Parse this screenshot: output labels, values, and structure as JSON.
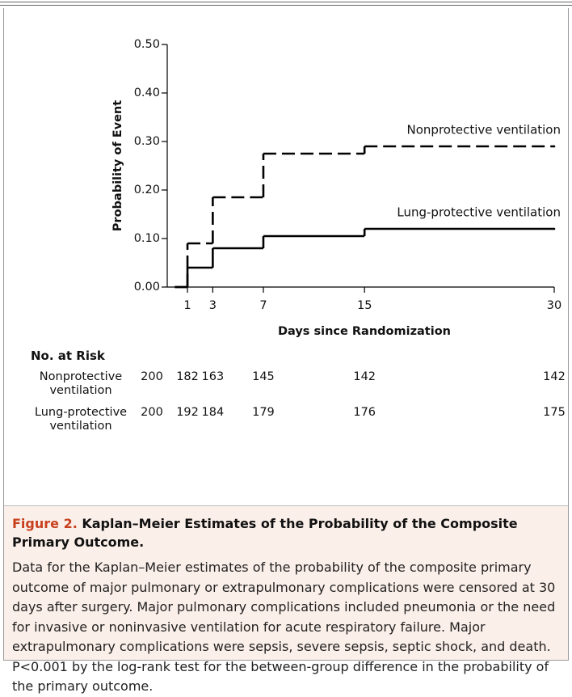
{
  "chart_data": {
    "type": "step",
    "xlabel": "Days since Randomization",
    "ylabel": "Probability of Event",
    "xlim": [
      -0.6,
      30
    ],
    "xticks": [
      1,
      3,
      7,
      15,
      30
    ],
    "ylim": [
      0,
      0.5
    ],
    "yticks": [
      {
        "value": 0,
        "label": "0.00"
      },
      {
        "value": 0.1,
        "label": "0.10"
      },
      {
        "value": 0.2,
        "label": "0.20"
      },
      {
        "value": 0.3,
        "label": "0.30"
      },
      {
        "value": 0.4,
        "label": "0.40"
      },
      {
        "value": 0.5,
        "label": "0.50"
      }
    ],
    "series": [
      {
        "name": "Nonprotective ventilation",
        "color": "#000000",
        "dashed": true,
        "x": [
          0,
          1,
          3,
          7,
          15,
          30
        ],
        "values": [
          0,
          0.09,
          0.185,
          0.275,
          0.29,
          0.29
        ]
      },
      {
        "name": "Lung-protective ventilation",
        "color": "#000000",
        "dashed": false,
        "x": [
          0,
          1,
          3,
          7,
          15,
          30
        ],
        "values": [
          0,
          0.04,
          0.08,
          0.105,
          0.12,
          0.12
        ]
      }
    ]
  },
  "risk_table": {
    "title": "No. at Risk",
    "rows": [
      {
        "label": "Nonprotective ventilation",
        "counts": [
          200,
          182,
          163,
          145,
          142,
          142
        ]
      },
      {
        "label": "Lung-protective ventilation",
        "counts": [
          200,
          192,
          184,
          179,
          176,
          175
        ]
      }
    ]
  },
  "caption": {
    "label": "Figure 2.",
    "title": "Kaplan–Meier Estimates of the Probability of the Composite Primary Outcome.",
    "text": "Data for the Kaplan–Meier estimates of the probability of the composite primary outcome of major pulmonary or extrapulmonary complications were censored at 30 days after surgery. Major pulmonary complications included pneumonia or the need for invasive or noninvasive ventilation for acute respiratory failure. Major extrapulmonary complications were sepsis, severe sepsis, septic shock, and death. P<0.001 by the log-rank test for the between-group difference in the probability of the primary outcome."
  }
}
